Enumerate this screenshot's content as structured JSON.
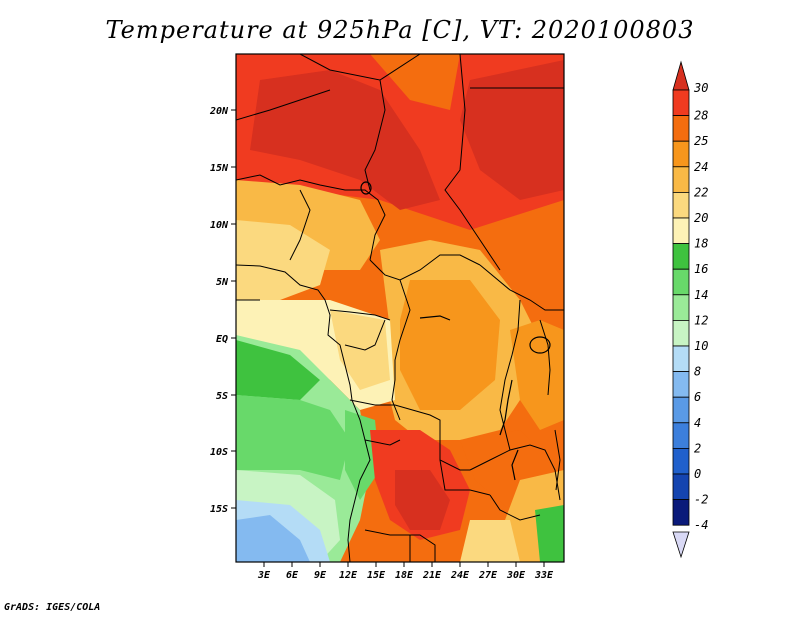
{
  "title": "Temperature at 925hPa [C], VT: 2020100803",
  "credit": "GrADS: IGES/COLA",
  "map": {
    "lat_ticks": [
      "20N",
      "15N",
      "10N",
      "5N",
      "EQ",
      "5S",
      "10S",
      "15S"
    ],
    "lon_ticks": [
      "3E",
      "6E",
      "9E",
      "12E",
      "15E",
      "18E",
      "21E",
      "24E",
      "27E",
      "30E",
      "33E"
    ]
  },
  "colorbar": {
    "levels": [
      "30",
      "28",
      "25",
      "24",
      "22",
      "20",
      "18",
      "16",
      "14",
      "12",
      "10",
      "8",
      "6",
      "4",
      "2",
      "0",
      "-2",
      "-4"
    ],
    "colors": [
      "#d7301f",
      "#f03b20",
      "#f46d0f",
      "#f7961c",
      "#f9b946",
      "#fbd97f",
      "#fdf2b6",
      "#3fc23f",
      "#68d96a",
      "#9aea98",
      "#c8f4c4",
      "#b4dcf6",
      "#84baf0",
      "#5a9ae6",
      "#3c7fdc",
      "#2060cc",
      "#1444b0",
      "#0a1a7a",
      "#d9d9f5"
    ]
  },
  "temperature_field": {
    "description_levels_c": [
      30,
      28,
      25,
      24,
      22,
      20,
      18,
      16,
      14,
      12,
      10
    ]
  }
}
